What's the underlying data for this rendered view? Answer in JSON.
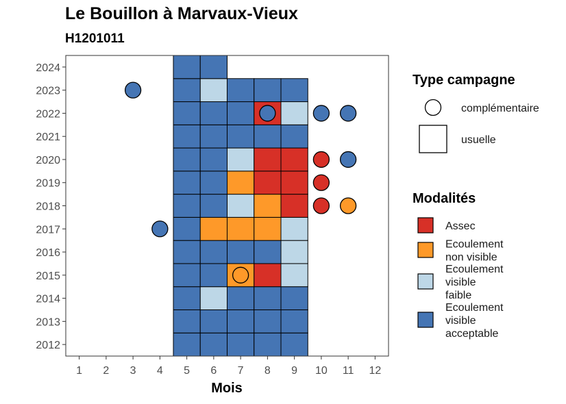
{
  "chart_data": {
    "type": "heatmap",
    "title": "Le Bouillon à Marvaux-Vieux",
    "subtitle": "H1201011",
    "xlabel": "Mois",
    "ylabel": "",
    "x_ticks": [
      1,
      2,
      3,
      4,
      5,
      6,
      7,
      8,
      9,
      10,
      11,
      12
    ],
    "y_ticks": [
      2012,
      2013,
      2014,
      2015,
      2016,
      2017,
      2018,
      2019,
      2020,
      2021,
      2022,
      2023,
      2024
    ],
    "xlim": [
      0.5,
      12.5
    ],
    "ylim": [
      2011.5,
      2024.5
    ],
    "grid": false,
    "colors": {
      "Assec": "#d73027",
      "Ecoulement non visible": "#fe9929",
      "Ecoulement visible faible": "#bdd7e7",
      "Ecoulement visible acceptable": "#4575b4"
    },
    "usuelle": [
      {
        "year": 2012,
        "month": 5,
        "modalite": "Ecoulement visible acceptable"
      },
      {
        "year": 2012,
        "month": 6,
        "modalite": "Ecoulement visible acceptable"
      },
      {
        "year": 2012,
        "month": 7,
        "modalite": "Ecoulement visible acceptable"
      },
      {
        "year": 2012,
        "month": 8,
        "modalite": "Ecoulement visible acceptable"
      },
      {
        "year": 2012,
        "month": 9,
        "modalite": "Ecoulement visible acceptable"
      },
      {
        "year": 2013,
        "month": 5,
        "modalite": "Ecoulement visible acceptable"
      },
      {
        "year": 2013,
        "month": 6,
        "modalite": "Ecoulement visible acceptable"
      },
      {
        "year": 2013,
        "month": 7,
        "modalite": "Ecoulement visible acceptable"
      },
      {
        "year": 2013,
        "month": 8,
        "modalite": "Ecoulement visible acceptable"
      },
      {
        "year": 2013,
        "month": 9,
        "modalite": "Ecoulement visible acceptable"
      },
      {
        "year": 2014,
        "month": 5,
        "modalite": "Ecoulement visible acceptable"
      },
      {
        "year": 2014,
        "month": 6,
        "modalite": "Ecoulement visible faible"
      },
      {
        "year": 2014,
        "month": 7,
        "modalite": "Ecoulement visible acceptable"
      },
      {
        "year": 2014,
        "month": 8,
        "modalite": "Ecoulement visible acceptable"
      },
      {
        "year": 2014,
        "month": 9,
        "modalite": "Ecoulement visible acceptable"
      },
      {
        "year": 2015,
        "month": 5,
        "modalite": "Ecoulement visible acceptable"
      },
      {
        "year": 2015,
        "month": 6,
        "modalite": "Ecoulement visible acceptable"
      },
      {
        "year": 2015,
        "month": 7,
        "modalite": "Ecoulement non visible"
      },
      {
        "year": 2015,
        "month": 8,
        "modalite": "Assec"
      },
      {
        "year": 2015,
        "month": 9,
        "modalite": "Ecoulement visible faible"
      },
      {
        "year": 2016,
        "month": 5,
        "modalite": "Ecoulement visible acceptable"
      },
      {
        "year": 2016,
        "month": 6,
        "modalite": "Ecoulement visible acceptable"
      },
      {
        "year": 2016,
        "month": 7,
        "modalite": "Ecoulement visible acceptable"
      },
      {
        "year": 2016,
        "month": 8,
        "modalite": "Ecoulement visible acceptable"
      },
      {
        "year": 2016,
        "month": 9,
        "modalite": "Ecoulement visible faible"
      },
      {
        "year": 2017,
        "month": 5,
        "modalite": "Ecoulement visible acceptable"
      },
      {
        "year": 2017,
        "month": 6,
        "modalite": "Ecoulement non visible"
      },
      {
        "year": 2017,
        "month": 7,
        "modalite": "Ecoulement non visible"
      },
      {
        "year": 2017,
        "month": 8,
        "modalite": "Ecoulement non visible"
      },
      {
        "year": 2017,
        "month": 9,
        "modalite": "Ecoulement visible faible"
      },
      {
        "year": 2018,
        "month": 5,
        "modalite": "Ecoulement visible acceptable"
      },
      {
        "year": 2018,
        "month": 6,
        "modalite": "Ecoulement visible acceptable"
      },
      {
        "year": 2018,
        "month": 7,
        "modalite": "Ecoulement visible faible"
      },
      {
        "year": 2018,
        "month": 8,
        "modalite": "Ecoulement non visible"
      },
      {
        "year": 2018,
        "month": 9,
        "modalite": "Assec"
      },
      {
        "year": 2019,
        "month": 5,
        "modalite": "Ecoulement visible acceptable"
      },
      {
        "year": 2019,
        "month": 6,
        "modalite": "Ecoulement visible acceptable"
      },
      {
        "year": 2019,
        "month": 7,
        "modalite": "Ecoulement non visible"
      },
      {
        "year": 2019,
        "month": 8,
        "modalite": "Assec"
      },
      {
        "year": 2019,
        "month": 9,
        "modalite": "Assec"
      },
      {
        "year": 2020,
        "month": 5,
        "modalite": "Ecoulement visible acceptable"
      },
      {
        "year": 2020,
        "month": 6,
        "modalite": "Ecoulement visible acceptable"
      },
      {
        "year": 2020,
        "month": 7,
        "modalite": "Ecoulement visible faible"
      },
      {
        "year": 2020,
        "month": 8,
        "modalite": "Assec"
      },
      {
        "year": 2020,
        "month": 9,
        "modalite": "Assec"
      },
      {
        "year": 2021,
        "month": 5,
        "modalite": "Ecoulement visible acceptable"
      },
      {
        "year": 2021,
        "month": 6,
        "modalite": "Ecoulement visible acceptable"
      },
      {
        "year": 2021,
        "month": 7,
        "modalite": "Ecoulement visible acceptable"
      },
      {
        "year": 2021,
        "month": 8,
        "modalite": "Ecoulement visible acceptable"
      },
      {
        "year": 2021,
        "month": 9,
        "modalite": "Ecoulement visible acceptable"
      },
      {
        "year": 2022,
        "month": 5,
        "modalite": "Ecoulement visible acceptable"
      },
      {
        "year": 2022,
        "month": 6,
        "modalite": "Ecoulement visible acceptable"
      },
      {
        "year": 2022,
        "month": 7,
        "modalite": "Ecoulement visible acceptable"
      },
      {
        "year": 2022,
        "month": 8,
        "modalite": "Assec"
      },
      {
        "year": 2022,
        "month": 9,
        "modalite": "Ecoulement visible faible"
      },
      {
        "year": 2023,
        "month": 5,
        "modalite": "Ecoulement visible acceptable"
      },
      {
        "year": 2023,
        "month": 6,
        "modalite": "Ecoulement visible faible"
      },
      {
        "year": 2023,
        "month": 7,
        "modalite": "Ecoulement visible acceptable"
      },
      {
        "year": 2023,
        "month": 8,
        "modalite": "Ecoulement visible acceptable"
      },
      {
        "year": 2023,
        "month": 9,
        "modalite": "Ecoulement visible acceptable"
      },
      {
        "year": 2024,
        "month": 5,
        "modalite": "Ecoulement visible acceptable"
      },
      {
        "year": 2024,
        "month": 6,
        "modalite": "Ecoulement visible acceptable"
      }
    ],
    "complementaire": [
      {
        "year": 2023,
        "month": 3,
        "modalite": "Ecoulement visible acceptable"
      },
      {
        "year": 2017,
        "month": 4,
        "modalite": "Ecoulement visible acceptable"
      },
      {
        "year": 2022,
        "month": 8,
        "modalite": "Ecoulement visible acceptable"
      },
      {
        "year": 2015,
        "month": 7,
        "modalite": "Ecoulement non visible"
      },
      {
        "year": 2022,
        "month": 10,
        "modalite": "Ecoulement visible acceptable"
      },
      {
        "year": 2022,
        "month": 11,
        "modalite": "Ecoulement visible acceptable"
      },
      {
        "year": 2020,
        "month": 10,
        "modalite": "Assec"
      },
      {
        "year": 2020,
        "month": 11,
        "modalite": "Ecoulement visible acceptable"
      },
      {
        "year": 2019,
        "month": 10,
        "modalite": "Assec"
      },
      {
        "year": 2018,
        "month": 10,
        "modalite": "Assec"
      },
      {
        "year": 2018,
        "month": 11,
        "modalite": "Ecoulement non visible"
      }
    ],
    "legend_type": {
      "title": "Type campagne",
      "items": [
        "complémentaire",
        "usuelle"
      ]
    },
    "legend_modalites": {
      "title": "Modalités",
      "items": [
        {
          "key": "Assec",
          "lines": [
            "Assec"
          ]
        },
        {
          "key": "Ecoulement non visible",
          "lines": [
            "Ecoulement",
            "non visible"
          ]
        },
        {
          "key": "Ecoulement visible faible",
          "lines": [
            "Ecoulement",
            "visible",
            "faible"
          ]
        },
        {
          "key": "Ecoulement visible acceptable",
          "lines": [
            "Ecoulement",
            "visible",
            "acceptable"
          ]
        }
      ]
    }
  }
}
